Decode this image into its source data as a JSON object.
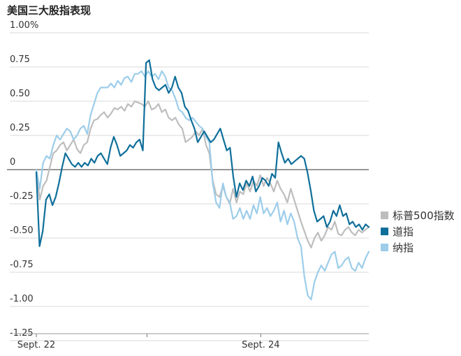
{
  "title": "美国三大股指表现",
  "colors": {
    "sp500": "#bdbdbd",
    "dow": "#0f6f9a",
    "nasdaq": "#9dcdea",
    "zero_line": "#777777",
    "grid": "#d9d9d9"
  },
  "chart_data": {
    "type": "line",
    "title": "美国三大股指表现",
    "ylim": [
      -1.25,
      1.0
    ],
    "y_ticks": [
      {
        "value": 1.0,
        "label": "1.00%"
      },
      {
        "value": 0.75,
        "label": "0.75"
      },
      {
        "value": 0.5,
        "label": "0.50"
      },
      {
        "value": 0.25,
        "label": "0.25"
      },
      {
        "value": 0.0,
        "label": "0"
      },
      {
        "value": -0.25,
        "label": "-0.25"
      },
      {
        "value": -0.5,
        "label": "-0.50"
      },
      {
        "value": -0.75,
        "label": "-0.75"
      },
      {
        "value": -1.0,
        "label": "-1.00"
      },
      {
        "value": -1.25,
        "label": "-1.25"
      }
    ],
    "x_ticks": [
      {
        "pos": 0.0,
        "label": "Sept. 22"
      },
      {
        "pos": 0.333,
        "label": ""
      },
      {
        "pos": 0.675,
        "label": "Sept. 24"
      }
    ],
    "grid": true,
    "legend_position": "right",
    "series": [
      {
        "name": "标普500指数",
        "key": "sp500",
        "values": [
          0.0,
          -0.22,
          -0.12,
          -0.08,
          0.02,
          0.12,
          0.14,
          0.18,
          0.2,
          0.14,
          0.18,
          0.22,
          0.15,
          0.12,
          0.18,
          0.2,
          0.3,
          0.36,
          0.37,
          0.4,
          0.42,
          0.38,
          0.41,
          0.45,
          0.44,
          0.46,
          0.43,
          0.48,
          0.46,
          0.5,
          0.49,
          0.48,
          0.46,
          0.5,
          0.44,
          0.45,
          0.48,
          0.42,
          0.44,
          0.38,
          0.36,
          0.38,
          0.33,
          0.3,
          0.2,
          0.22,
          0.24,
          0.28,
          0.25,
          0.3,
          0.18,
          0.12,
          -0.08,
          -0.18,
          -0.2,
          -0.12,
          -0.2,
          -0.25,
          -0.14,
          -0.24,
          -0.16,
          -0.18,
          -0.1,
          -0.16,
          -0.08,
          -0.12,
          -0.04,
          -0.12,
          -0.06,
          -0.1,
          -0.16,
          -0.08,
          -0.14,
          -0.18,
          -0.24,
          -0.14,
          -0.22,
          -0.3,
          -0.38,
          -0.45,
          -0.52,
          -0.57,
          -0.5,
          -0.46,
          -0.52,
          -0.48,
          -0.42,
          -0.44,
          -0.38,
          -0.47,
          -0.48,
          -0.44,
          -0.42,
          -0.46,
          -0.48,
          -0.44,
          -0.46,
          -0.44,
          -0.42
        ]
      },
      {
        "name": "道指",
        "key": "dow",
        "values": [
          -0.02,
          -0.56,
          -0.45,
          -0.22,
          -0.18,
          -0.26,
          -0.2,
          -0.1,
          0.02,
          0.12,
          0.08,
          0.04,
          0.02,
          0.05,
          0.02,
          0.05,
          0.03,
          0.08,
          0.05,
          0.1,
          0.12,
          0.08,
          0.04,
          0.16,
          0.24,
          0.18,
          0.1,
          0.12,
          0.14,
          0.18,
          0.16,
          0.2,
          0.22,
          0.14,
          0.78,
          0.8,
          0.66,
          0.6,
          0.58,
          0.6,
          0.62,
          0.56,
          0.6,
          0.68,
          0.6,
          0.56,
          0.46,
          0.43,
          0.36,
          0.3,
          0.2,
          0.24,
          0.28,
          0.24,
          0.2,
          0.22,
          0.26,
          0.3,
          0.22,
          0.14,
          0.16,
          -0.05,
          -0.2,
          -0.1,
          -0.15,
          -0.08,
          -0.12,
          -0.05,
          -0.16,
          -0.12,
          -0.06,
          -0.08,
          -0.12,
          -0.03,
          -0.06,
          0.2,
          0.12,
          0.05,
          0.08,
          0.04,
          0.06,
          0.08,
          0.1,
          0.08,
          -0.02,
          -0.15,
          -0.3,
          -0.38,
          -0.36,
          -0.34,
          -0.42,
          -0.38,
          -0.3,
          -0.34,
          -0.26,
          -0.34,
          -0.32,
          -0.4,
          -0.38,
          -0.42,
          -0.4,
          -0.44,
          -0.4,
          -0.42
        ]
      },
      {
        "name": "纳指",
        "key": "nasdaq",
        "values": [
          0.0,
          -0.14,
          0.05,
          0.1,
          0.08,
          0.18,
          0.25,
          0.22,
          0.26,
          0.3,
          0.28,
          0.22,
          0.25,
          0.3,
          0.32,
          0.26,
          0.4,
          0.48,
          0.56,
          0.6,
          0.6,
          0.6,
          0.63,
          0.6,
          0.65,
          0.62,
          0.67,
          0.68,
          0.64,
          0.7,
          0.7,
          0.72,
          0.68,
          0.72,
          0.68,
          0.7,
          0.66,
          0.72,
          0.68,
          0.6,
          0.58,
          0.52,
          0.44,
          0.42,
          0.38,
          0.36,
          0.38,
          0.35,
          0.32,
          0.3,
          0.24,
          0.2,
          -0.1,
          -0.24,
          -0.28,
          -0.1,
          -0.2,
          -0.24,
          -0.36,
          -0.34,
          -0.28,
          -0.36,
          -0.3,
          -0.36,
          -0.26,
          -0.32,
          -0.2,
          -0.32,
          -0.28,
          -0.34,
          -0.3,
          -0.24,
          -0.38,
          -0.3,
          -0.4,
          -0.32,
          -0.38,
          -0.5,
          -0.56,
          -0.78,
          -0.92,
          -0.95,
          -0.82,
          -0.75,
          -0.7,
          -0.74,
          -0.68,
          -0.62,
          -0.6,
          -0.72,
          -0.7,
          -0.66,
          -0.64,
          -0.72,
          -0.74,
          -0.68,
          -0.72,
          -0.65,
          -0.6
        ]
      }
    ]
  }
}
